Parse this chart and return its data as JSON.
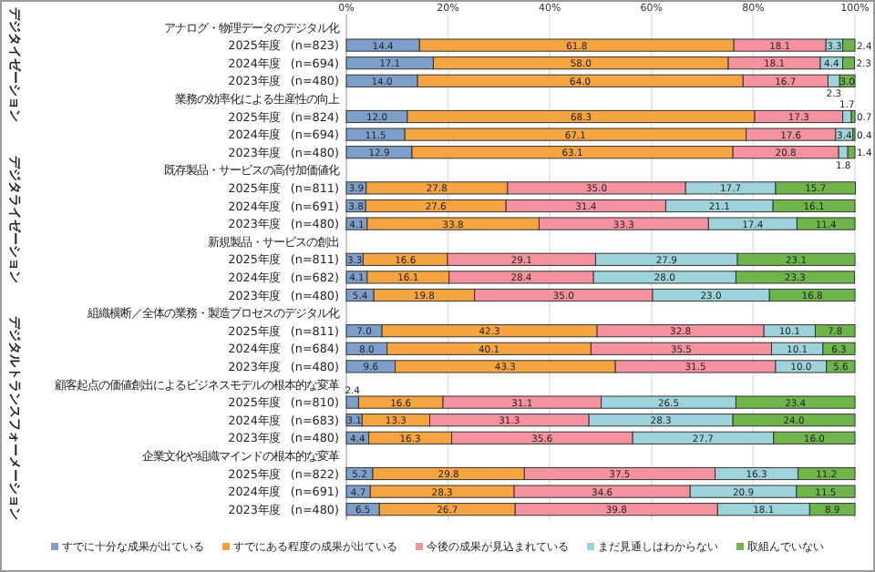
{
  "chart_data": {
    "type": "bar",
    "orientation": "horizontal",
    "stacked": true,
    "categories": [
      "アナログ・物理データのデジタル化",
      "2025年度　(n=823)",
      "2024年度　(n=694)",
      "2023年度　(n=480)",
      "業務の効率化による生産性の向上",
      "2025年度　(n=824)",
      "2024年度　(n=694)",
      "2023年度　(n=480)",
      "既存製品・サービスの高付加価値化",
      "2025年度　(n=811)",
      "2024年度　(n=691)",
      "2023年度　(n=480)",
      "新規製品・サービスの創出",
      "2025年度　(n=811)",
      "2024年度　(n=682)",
      "2023年度　(n=480)",
      "組織横断／全体の業務・製造プロセスのデジタル化",
      "2025年度　(n=811)",
      "2024年度　(n=684)",
      "2023年度　(n=480)",
      "顧客起点の価値創出によるビジネスモデルの根本的な変革",
      "2025年度　(n=810)",
      "2024年度　(n=683)",
      "2023年度　(n=480)",
      "企業文化や組織マインドの根本的な変革",
      "2025年度　(n=822)",
      "2024年度　(n=691)",
      "2023年度　(n=480)"
    ],
    "series": [
      {
        "name": "すでに十分な成果が出ている",
        "color": "#7f9fcb",
        "values": [
          null,
          14.4,
          17.1,
          14.0,
          null,
          12.0,
          11.5,
          12.9,
          null,
          3.9,
          3.8,
          4.1,
          null,
          3.3,
          4.1,
          5.4,
          null,
          7.0,
          8.0,
          9.6,
          null,
          2.4,
          3.1,
          4.4,
          null,
          5.2,
          4.7,
          6.5
        ],
        "value_labels": [
          null,
          "14.4",
          "17.1",
          "14.0",
          null,
          "12.0",
          "11.5",
          "12.9",
          null,
          "3.9",
          "3.8",
          "4.1",
          null,
          "3.3",
          "4.1",
          "5.4",
          null,
          "7.0",
          "8.0",
          "9.6",
          null,
          "2.4",
          "3.1",
          "4.4",
          null,
          "5.2",
          "4.7",
          "6.5"
        ]
      },
      {
        "name": "すでにある程度の成果が出ている",
        "color": "#f5a442",
        "values": [
          null,
          61.8,
          58.0,
          64.0,
          null,
          68.3,
          67.1,
          63.1,
          null,
          27.8,
          27.6,
          33.8,
          null,
          16.6,
          16.1,
          19.8,
          null,
          42.3,
          40.1,
          43.3,
          null,
          16.6,
          13.3,
          16.3,
          null,
          29.8,
          28.3,
          26.7
        ],
        "value_labels": [
          null,
          "61.8",
          "58.0",
          "64.0",
          null,
          "68.3",
          "67.1",
          "63.1",
          null,
          "27.8",
          "27.6",
          "33.8",
          null,
          "16.6",
          "16.1",
          "19.8",
          null,
          "42.3",
          "40.1",
          "43.3",
          null,
          "16.6",
          "13.3",
          "16.3",
          null,
          "29.8",
          "28.3",
          "26.7"
        ]
      },
      {
        "name": "今後の成果が見込まれている",
        "color": "#f4939f",
        "values": [
          null,
          18.1,
          18.1,
          16.7,
          null,
          17.3,
          17.6,
          20.8,
          null,
          35.0,
          31.4,
          33.3,
          null,
          29.1,
          28.4,
          35.0,
          null,
          32.8,
          35.5,
          31.5,
          null,
          31.1,
          31.3,
          35.6,
          null,
          37.5,
          34.6,
          39.8
        ],
        "value_labels": [
          null,
          "18.1",
          "18.1",
          "16.7",
          null,
          "17.3",
          "17.6",
          "20.8",
          null,
          "35.0",
          "31.4",
          "33.3",
          null,
          "29.1",
          "28.4",
          "35.0",
          null,
          "32.8",
          "35.5",
          "31.5",
          null,
          "31.1",
          "31.3",
          "35.6",
          null,
          "37.5",
          "34.6",
          "39.8"
        ]
      },
      {
        "name": "まだ見通しはわからない",
        "color": "#9ed3dc",
        "values": [
          null,
          3.3,
          4.4,
          2.3,
          null,
          1.7,
          3.4,
          1.8,
          null,
          17.7,
          21.1,
          17.4,
          null,
          27.9,
          28.0,
          23.0,
          null,
          10.1,
          10.1,
          10.0,
          null,
          26.5,
          28.3,
          27.7,
          null,
          16.3,
          20.9,
          18.1
        ],
        "value_labels": [
          null,
          "3.3",
          "4.4",
          "2.3",
          null,
          "1.7",
          "3.4",
          "1.8",
          null,
          "17.7",
          "21.1",
          "17.4",
          null,
          "27.9",
          "28.0",
          "23.0",
          null,
          "10.1",
          "10.1",
          "10.0",
          null,
          "26.5",
          "28.3",
          "27.7",
          null,
          "16.3",
          "20.9",
          "18.1"
        ]
      },
      {
        "name": "取組んでいない",
        "color": "#6fb54c",
        "values": [
          null,
          2.4,
          2.3,
          3.0,
          null,
          0.7,
          0.4,
          1.4,
          null,
          15.7,
          16.1,
          11.4,
          null,
          23.1,
          23.3,
          16.8,
          null,
          7.8,
          6.3,
          5.6,
          null,
          23.4,
          24.0,
          16.0,
          null,
          11.2,
          11.5,
          8.9
        ],
        "value_labels": [
          null,
          "2.4",
          "2.3",
          "3.0",
          null,
          "0.7",
          "0.4",
          "1.4",
          null,
          "15.7",
          "16.1",
          "11.4",
          null,
          "23.1",
          "23.3",
          "16.8",
          null,
          "7.8",
          "6.3",
          "5.6",
          null,
          "23.4",
          "24.0",
          "16.0",
          null,
          "11.2",
          "11.5",
          "8.9"
        ]
      }
    ],
    "xlim": [
      0,
      100
    ],
    "xticks": [
      {
        "value": 0,
        "label": "0%"
      },
      {
        "value": 20,
        "label": "20%"
      },
      {
        "value": 40,
        "label": "40%"
      },
      {
        "value": 60,
        "label": "60%"
      },
      {
        "value": 80,
        "label": "80%"
      },
      {
        "value": 100,
        "label": "100%"
      }
    ],
    "grid": "x",
    "legend": "bottom",
    "annotations": [
      "デジタイゼーション",
      "デジタライゼーション",
      "デジタルトランスフォーメーション"
    ]
  }
}
